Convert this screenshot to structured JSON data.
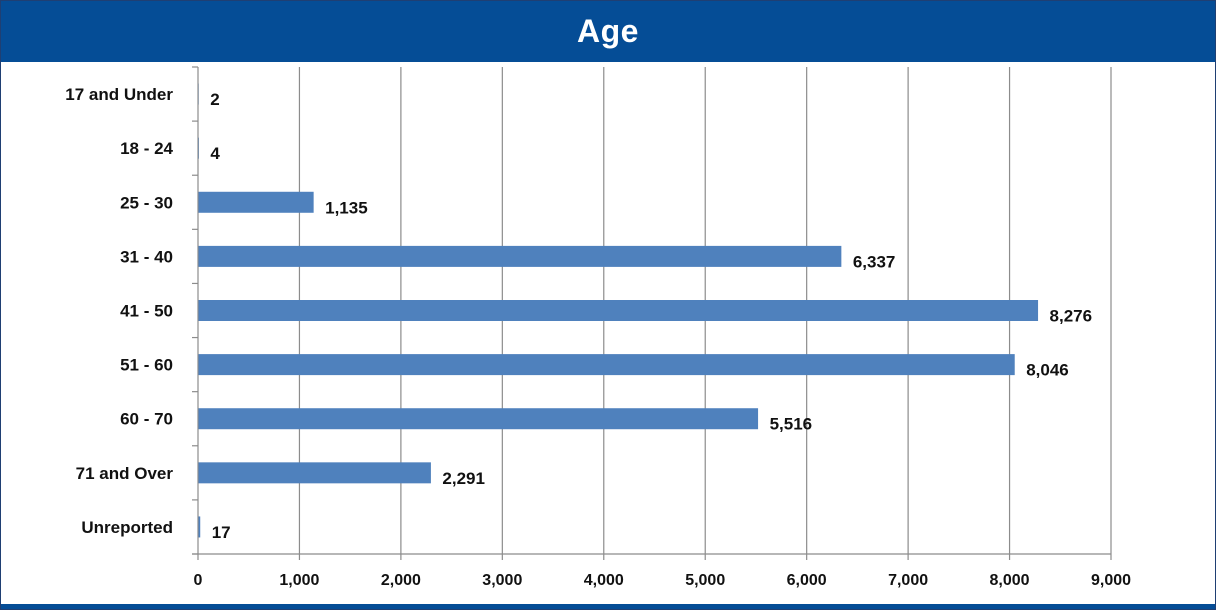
{
  "chart_data": {
    "type": "bar",
    "orientation": "horizontal",
    "title": "Age",
    "categories": [
      "17 and Under",
      "18 - 24",
      "25 - 30",
      "31 - 40",
      "41 - 50",
      "51 - 60",
      "60 - 70",
      "71 and Over",
      "Unreported"
    ],
    "values": [
      2,
      4,
      1135,
      6337,
      8276,
      8046,
      5516,
      2291,
      17
    ],
    "value_labels": [
      "2",
      "4",
      "1,135",
      "6,337",
      "8,276",
      "8,046",
      "5,516",
      "2,291",
      "17"
    ],
    "xlim": [
      0,
      9000
    ],
    "xticks": [
      0,
      1000,
      2000,
      3000,
      4000,
      5000,
      6000,
      7000,
      8000,
      9000
    ],
    "xtick_labels": [
      "0",
      "1,000",
      "2,000",
      "3,000",
      "4,000",
      "5,000",
      "6,000",
      "7,000",
      "8,000",
      "9,000"
    ],
    "xlabel": "",
    "ylabel": "",
    "grid": "vertical",
    "legend": "none",
    "colors": {
      "bar": "#4f81bd",
      "header": "#054d96",
      "gridline": "#8c8c8c"
    }
  }
}
